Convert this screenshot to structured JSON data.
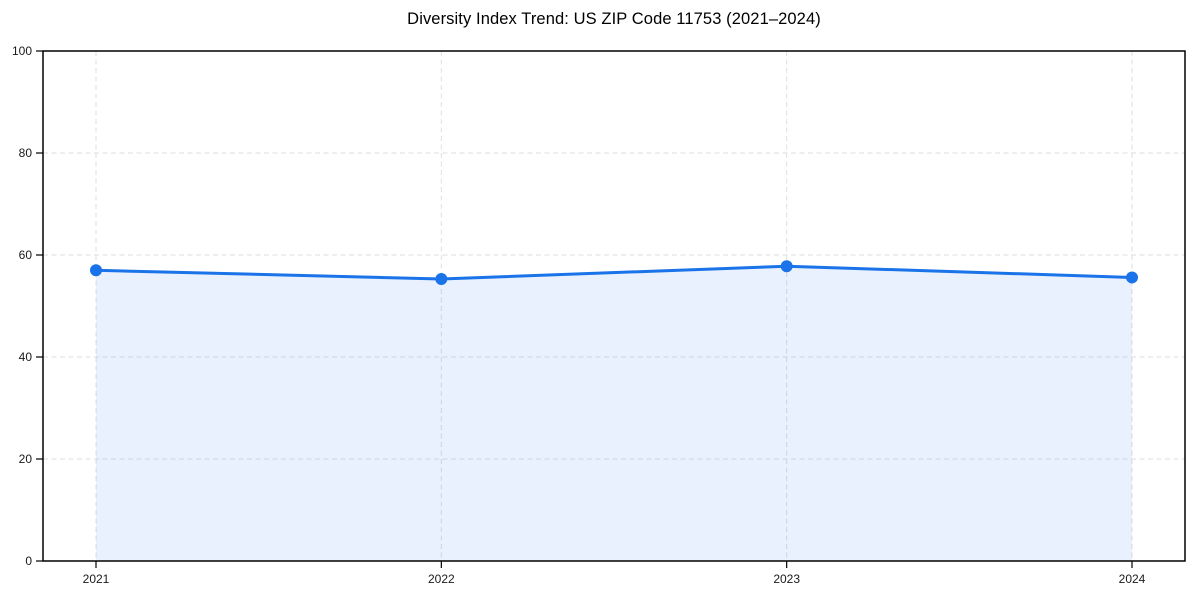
{
  "chart_data": {
    "type": "area",
    "title": "Diversity Index Trend: US ZIP Code 11753 (2021–2024)",
    "categories": [
      "2021",
      "2022",
      "2023",
      "2024"
    ],
    "series": [
      {
        "name": "Diversity Index",
        "values": [
          57.0,
          55.3,
          57.8,
          55.6
        ]
      }
    ],
    "xlabel": "",
    "ylabel": "",
    "ylim": [
      0,
      100
    ],
    "yticks": [
      0,
      20,
      40,
      60,
      80,
      100
    ],
    "grid": true,
    "legend_position": "none",
    "colors": {
      "line": "#1a73e8",
      "marker": "#1a73e8",
      "fill": "rgba(26,115,232,0.10)",
      "grid": "#dedede",
      "axis": "#000000",
      "tick_label": "#1a1a1a",
      "title": "#000000",
      "background": "#ffffff"
    }
  }
}
